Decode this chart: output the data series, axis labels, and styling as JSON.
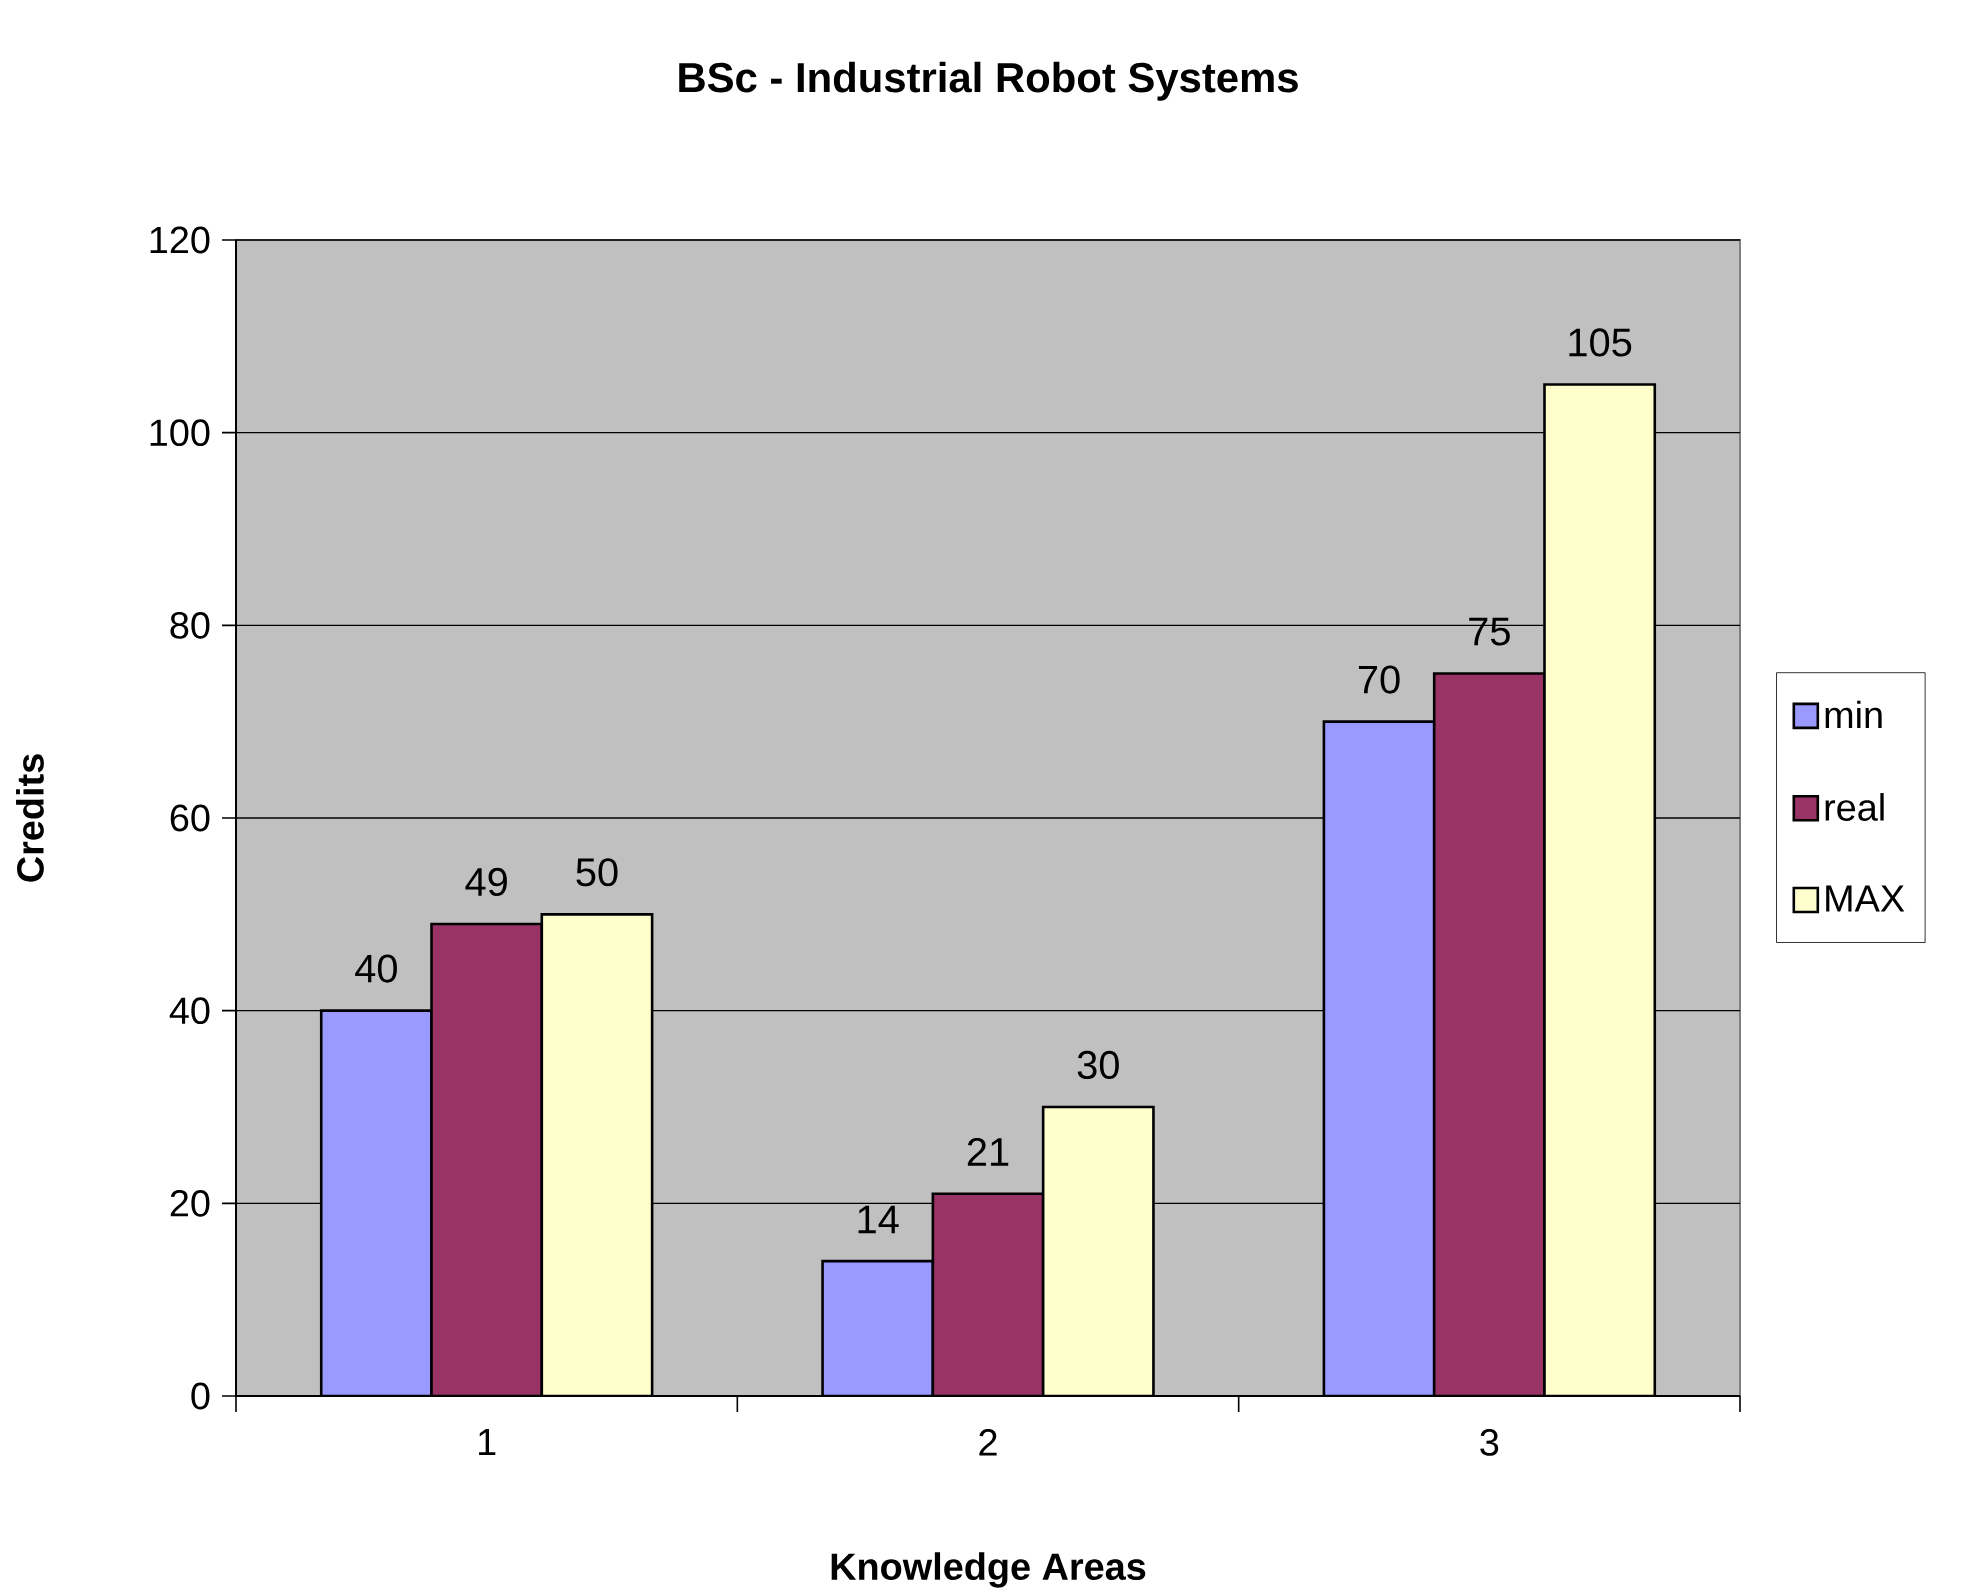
{
  "chart_data": {
    "type": "bar",
    "title": "BSc - Industrial Robot Systems",
    "xlabel": "Knowledge Areas",
    "ylabel": "Credits",
    "categories": [
      "1",
      "2",
      "3"
    ],
    "series": [
      {
        "name": "min",
        "color": "#9999ff",
        "values": [
          40,
          14,
          70
        ]
      },
      {
        "name": "real",
        "color": "#993366",
        "values": [
          49,
          21,
          75
        ]
      },
      {
        "name": "MAX",
        "color": "#ffffcc",
        "values": [
          50,
          30,
          105
        ]
      }
    ],
    "ylim": [
      0,
      120
    ],
    "yticks": [
      0,
      20,
      40,
      60,
      80,
      100,
      120
    ],
    "grid": "y",
    "legend": "right",
    "data_labels": true
  }
}
